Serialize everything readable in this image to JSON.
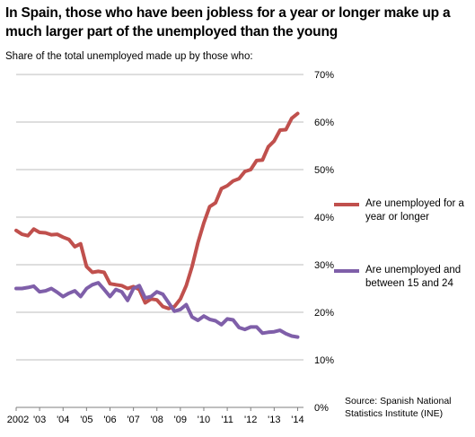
{
  "title": "In Spain, those who have been jobless for a year or longer make up a much larger part of the unemployed than the young",
  "subtitle": "Share of the total unemployed  made up by those who:",
  "source": "Source: Spanish National Statistics Institute (INE)",
  "colors": {
    "long_term": "#c0504d",
    "young": "#7f5fa9",
    "grid": "#a6a6a6",
    "axis": "#7f7f7f"
  },
  "legend": [
    {
      "label": "Are unemployed for a year or longer",
      "color": "#c0504d"
    },
    {
      "label": "Are unemployed and between 15 and 24",
      "color": "#7f5fa9"
    }
  ],
  "chart_data": {
    "type": "line",
    "title": "In Spain, those who have been jobless for a year or longer make up a much larger part of the unemployed than the young",
    "subtitle": "Share of the total unemployed  made up by those who:",
    "x_tick_labels": [
      "2002",
      "'03",
      "'04",
      "'05",
      "'06",
      "'07",
      "'08",
      "'09",
      "'10",
      "'11",
      "'12",
      "'13",
      "'14"
    ],
    "y_tick_labels": [
      "0%",
      "10%",
      "20%",
      "30%",
      "40%",
      "50%",
      "60%",
      "70%"
    ],
    "ylim": [
      0,
      70
    ],
    "xlim": [
      2002,
      2014.25
    ],
    "y_axis_position": "right",
    "grid": "horizontal",
    "legend_position": "right",
    "frequency": "quarterly",
    "series": [
      {
        "name": "Are unemployed for a year or longer",
        "color": "#c0504d",
        "values": [
          37.2,
          36.4,
          36.1,
          37.5,
          36.8,
          36.7,
          36.3,
          36.4,
          35.8,
          35.3,
          33.8,
          34.4,
          29.6,
          28.4,
          28.6,
          28.4,
          26.0,
          25.8,
          25.6,
          25.0,
          25.4,
          24.8,
          22.0,
          22.8,
          22.6,
          21.2,
          20.8,
          21.2,
          22.8,
          25.6,
          29.6,
          34.6,
          38.8,
          42.2,
          43.0,
          46.0,
          46.6,
          47.6,
          48.1,
          49.6,
          50.0,
          51.9,
          52.0,
          54.8,
          56.0,
          58.3,
          58.4,
          60.8,
          61.8
        ]
      },
      {
        "name": "Are unemployed and between 15 and 24",
        "color": "#7f5fa9",
        "values": [
          25.0,
          25.0,
          25.2,
          25.5,
          24.3,
          24.5,
          25.0,
          24.2,
          23.3,
          24.0,
          24.5,
          23.3,
          25.0,
          25.8,
          26.2,
          24.8,
          23.3,
          24.8,
          24.3,
          22.5,
          25.0,
          25.6,
          23.0,
          23.3,
          24.3,
          23.8,
          22.0,
          20.2,
          20.6,
          21.6,
          19.0,
          18.3,
          19.2,
          18.5,
          18.2,
          17.4,
          18.6,
          18.4,
          16.8,
          16.4,
          16.9,
          16.9,
          15.6,
          15.8,
          15.9,
          16.2,
          15.5,
          15.0,
          14.8
        ]
      }
    ]
  }
}
